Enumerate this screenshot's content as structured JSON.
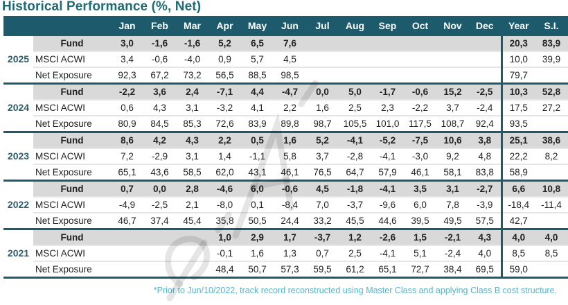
{
  "title": "Historical Performance (%, Net)",
  "columns": [
    "Jan",
    "Feb",
    "Mar",
    "Apr",
    "May",
    "Jun",
    "Jul",
    "Aug",
    "Sep",
    "Oct",
    "Nov",
    "Dec",
    "Year",
    "S.I."
  ],
  "row_labels": [
    "Fund",
    "MSCI ACWI",
    "Net Exposure"
  ],
  "years": [
    {
      "year": "2025",
      "rows": [
        [
          "3,0",
          "-1,6",
          "-1,6",
          "5,2",
          "6,5",
          "7,6",
          "",
          "",
          "",
          "",
          "",
          "",
          "20,3",
          "83,9"
        ],
        [
          "3,4",
          "-0,6",
          "-4,0",
          "0,9",
          "5,7",
          "4,5",
          "",
          "",
          "",
          "",
          "",
          "",
          "10,0",
          "39,9"
        ],
        [
          "92,3",
          "67,2",
          "73,2",
          "56,5",
          "88,5",
          "98,5",
          "",
          "",
          "",
          "",
          "",
          "",
          "79,7",
          ""
        ]
      ]
    },
    {
      "year": "2024",
      "rows": [
        [
          "-2,2",
          "3,6",
          "2,4",
          "-7,1",
          "4,4",
          "-4,7",
          "0,0",
          "5,0",
          "-1,7",
          "-0,6",
          "15,2",
          "-2,5",
          "10,3",
          "52,8"
        ],
        [
          "0,6",
          "4,3",
          "3,1",
          "-3,2",
          "4,1",
          "2,2",
          "1,6",
          "2,5",
          "2,3",
          "-2,2",
          "3,7",
          "-2,4",
          "17,5",
          "27,2"
        ],
        [
          "80,9",
          "84,5",
          "85,3",
          "72,6",
          "83,9",
          "89,8",
          "98,7",
          "105,5",
          "101,0",
          "117,5",
          "108,7",
          "92,4",
          "93,5",
          ""
        ]
      ]
    },
    {
      "year": "2023",
      "rows": [
        [
          "8,6",
          "4,2",
          "4,3",
          "2,2",
          "0,5",
          "1,6",
          "5,2",
          "-4,1",
          "-5,2",
          "-7,5",
          "10,6",
          "3,8",
          "25,1",
          "38,6"
        ],
        [
          "7,2",
          "-2,9",
          "3,1",
          "1,4",
          "-1,1",
          "5,8",
          "3,7",
          "-2,8",
          "-4,1",
          "-3,0",
          "9,2",
          "4,8",
          "22,2",
          "8,2"
        ],
        [
          "65,1",
          "43,6",
          "58,5",
          "62,0",
          "43,1",
          "46,1",
          "76,5",
          "64,7",
          "57,9",
          "46,1",
          "58,1",
          "83,8",
          "58,9",
          ""
        ]
      ]
    },
    {
      "year": "2022",
      "rows": [
        [
          "0,7",
          "0,0",
          "2,8",
          "-4,6",
          "6,0",
          "-0,6",
          "4,5",
          "-1,8",
          "-4,1",
          "3,5",
          "3,1",
          "-2,7",
          "6,6",
          "10,8"
        ],
        [
          "-4,9",
          "-2,5",
          "2,1",
          "-8,0",
          "0,1",
          "-8,4",
          "7,0",
          "-3,7",
          "-9,6",
          "6,0",
          "7,8",
          "-3,9",
          "-18,4",
          "-11,4"
        ],
        [
          "46,7",
          "37,4",
          "45,4",
          "35,8",
          "50,5",
          "24,4",
          "33,2",
          "45,5",
          "44,6",
          "39,5",
          "49,5",
          "57,5",
          "42,7",
          ""
        ]
      ]
    },
    {
      "year": "2021",
      "rows": [
        [
          "",
          "",
          "",
          "1,0",
          "2,9",
          "1,7",
          "-3,7",
          "1,2",
          "-2,6",
          "1,5",
          "-2,1",
          "4,3",
          "4,0",
          "4,0"
        ],
        [
          "",
          "",
          "",
          "-0,1",
          "1,6",
          "1,3",
          "0,7",
          "2,5",
          "-4,1",
          "5,1",
          "-2,4",
          "4,0",
          "8,5",
          "8,5"
        ],
        [
          "",
          "",
          "",
          "48,4",
          "50,7",
          "57,3",
          "59,5",
          "61,2",
          "65,1",
          "72,7",
          "38,4",
          "69,5",
          "59,0",
          ""
        ]
      ]
    }
  ],
  "footnote": "*Prior to Jun/10/2022, track record reconstructed using Master Class and applying Class B cost structure.",
  "watermark": "d'Alpha",
  "colors": {
    "header": "#1d5a6c",
    "fund_text": "#2c5e6d",
    "fund_bg": "#d9d9d9",
    "title": "#1f6b73",
    "footnote": "#58b4c4"
  }
}
